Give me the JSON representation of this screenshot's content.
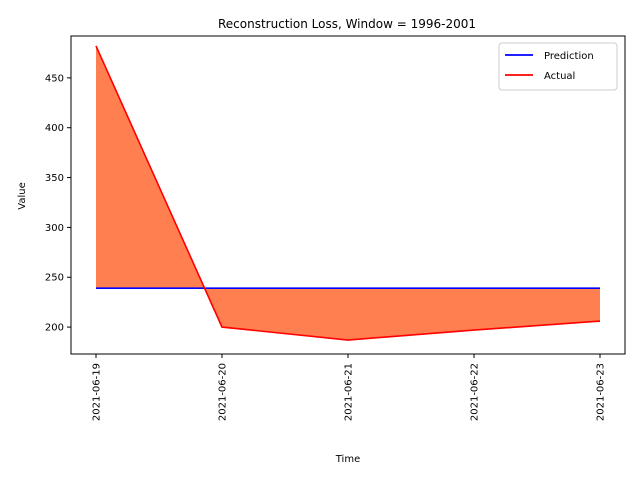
{
  "chart_data": {
    "type": "line",
    "title": "Reconstruction Loss, Window = 1996-2001",
    "xlabel": "Time",
    "ylabel": "Value",
    "x": [
      "2021-06-19",
      "2021-06-20",
      "2021-06-21",
      "2021-06-22",
      "2021-06-23"
    ],
    "series": [
      {
        "name": "Prediction",
        "color": "#0000ff",
        "values": [
          239,
          239,
          239,
          239,
          239
        ]
      },
      {
        "name": "Actual",
        "color": "#ff0000",
        "values": [
          482,
          200,
          187,
          197,
          206
        ]
      }
    ],
    "fill_between": {
      "color": "#ff7f50",
      "between": [
        "Prediction",
        "Actual"
      ]
    },
    "ylim": [
      173,
      492
    ],
    "yticks": [
      200,
      250,
      300,
      350,
      400,
      450
    ],
    "grid": false,
    "legend_position": "top-right"
  }
}
